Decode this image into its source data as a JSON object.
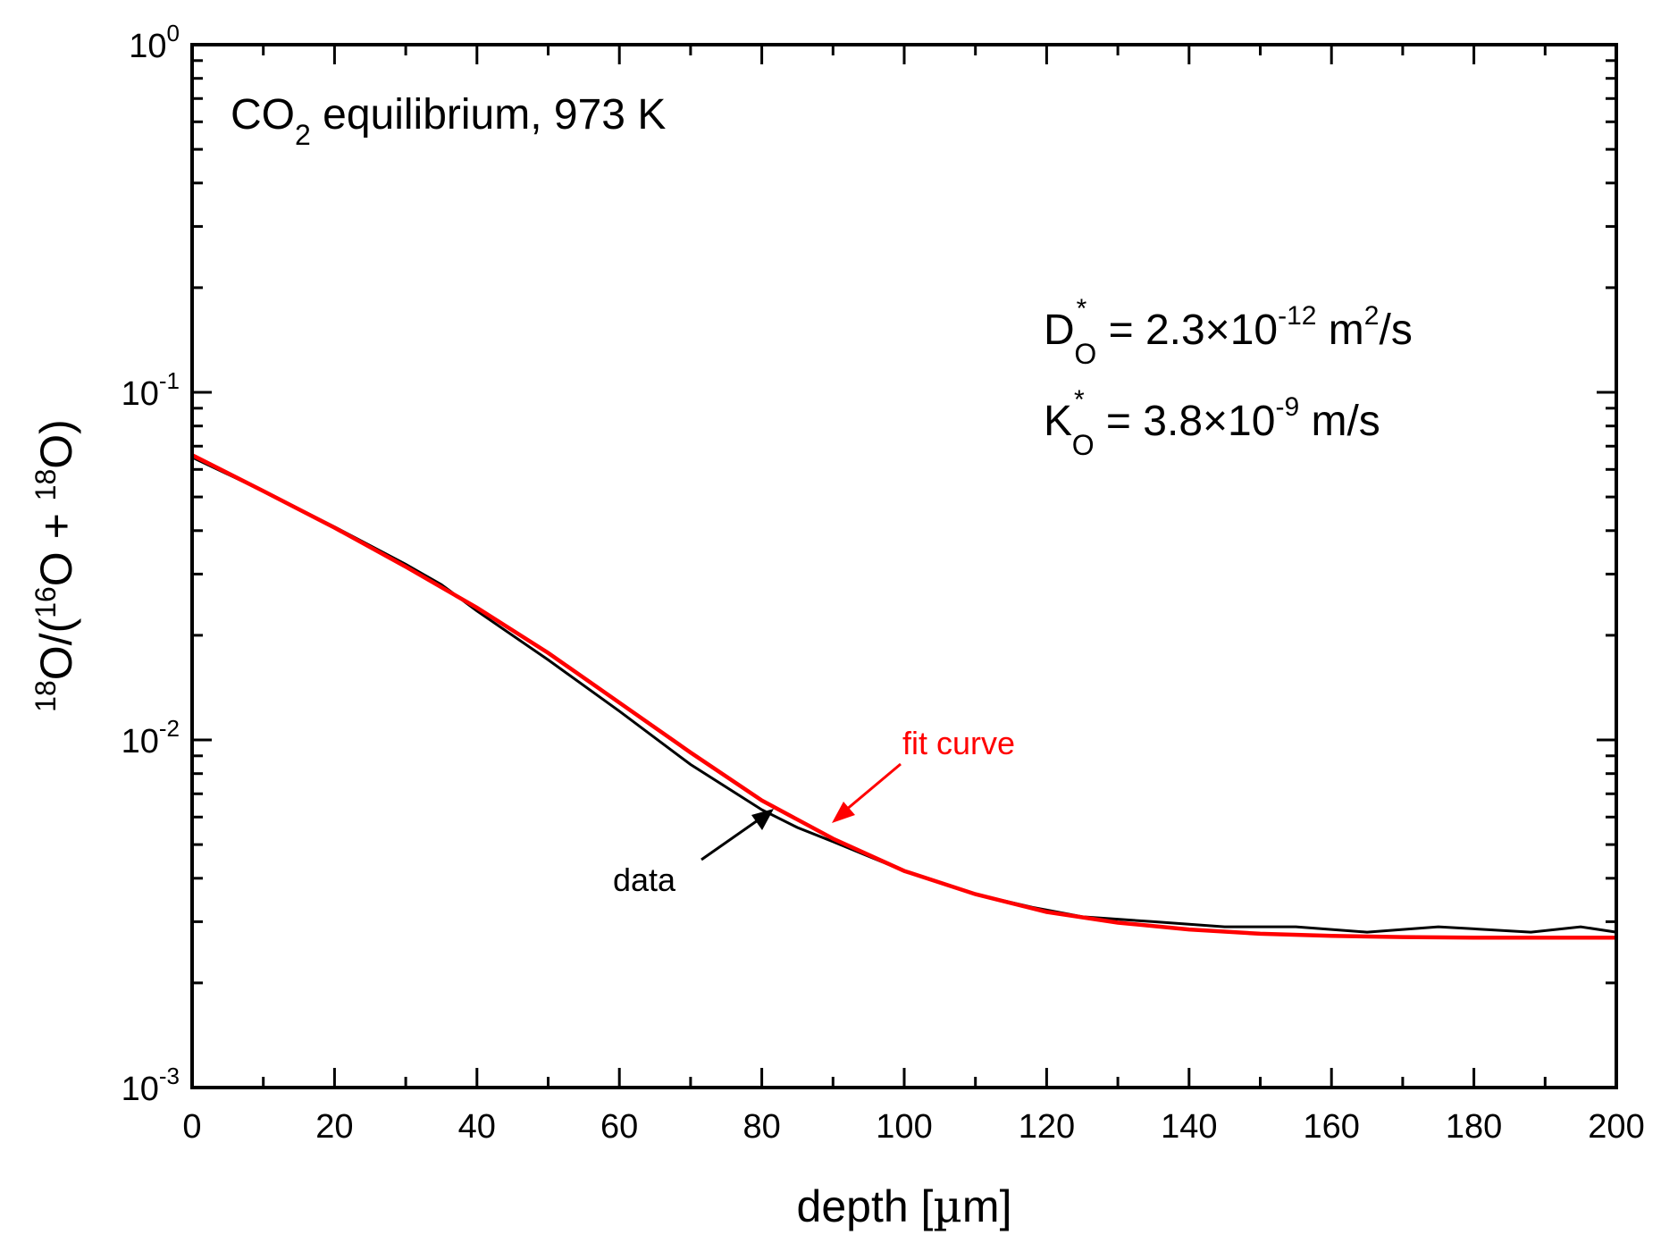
{
  "chart_data": {
    "type": "line",
    "title": "",
    "xlabel": "depth [µm]",
    "ylabel": "18O/(16O + 18O)",
    "xscale": "linear",
    "yscale": "log",
    "xlim": [
      0,
      200
    ],
    "ylim": [
      0.001,
      1
    ],
    "xticks": [
      0,
      20,
      40,
      60,
      80,
      100,
      120,
      140,
      160,
      180,
      200
    ],
    "yticks": [
      {
        "base": "10",
        "exp": "-3",
        "value": 0.001
      },
      {
        "base": "10",
        "exp": "-2",
        "value": 0.01
      },
      {
        "base": "10",
        "exp": "-1",
        "value": 0.1
      },
      {
        "base": "10",
        "exp": "0",
        "value": 1
      }
    ],
    "grid": false,
    "series": [
      {
        "name": "data",
        "color": "#000000",
        "x": [
          0,
          10,
          20,
          30,
          35,
          40,
          50,
          60,
          70,
          80,
          85,
          90,
          100,
          110,
          118,
          125,
          135,
          145,
          155,
          165,
          175,
          188,
          195,
          200
        ],
        "y": [
          0.065,
          0.052,
          0.041,
          0.032,
          0.028,
          0.0235,
          0.017,
          0.0121,
          0.0085,
          0.0063,
          0.0056,
          0.0051,
          0.0042,
          0.0036,
          0.0033,
          0.0031,
          0.003,
          0.0029,
          0.0029,
          0.0028,
          0.0029,
          0.0028,
          0.0029,
          0.0028
        ]
      },
      {
        "name": "fit curve",
        "color": "#ff0000",
        "x": [
          0,
          10,
          20,
          30,
          40,
          50,
          60,
          70,
          80,
          90,
          100,
          110,
          120,
          130,
          140,
          150,
          160,
          170,
          180,
          190,
          200
        ],
        "y": [
          0.066,
          0.052,
          0.0408,
          0.0315,
          0.024,
          0.0178,
          0.0128,
          0.0092,
          0.0067,
          0.0052,
          0.0042,
          0.0036,
          0.0032,
          0.00298,
          0.00285,
          0.00277,
          0.00273,
          0.00271,
          0.0027,
          0.0027,
          0.0027
        ]
      }
    ],
    "annotations": {
      "condition": {
        "main": "CO",
        "sub": "2",
        "rest": " equilibrium, 973 K"
      },
      "diffusion": {
        "symbol": "D",
        "sup": "*",
        "sub": "O",
        "eq": " = 2.3×10",
        "exp": "-12",
        "unit_a": " m",
        "unit_sup": "2",
        "unit_b": "/s"
      },
      "exchange": {
        "symbol": "K",
        "sup": "*",
        "sub": "O",
        "eq": " = 3.8×10",
        "exp": "-9",
        "unit": " m/s"
      },
      "fit_label": "fit curve",
      "data_label": "data"
    },
    "ylabel_parts": {
      "sup1": "18",
      "t1": "O/(",
      "sup2": "16",
      "t2": "O + ",
      "sup3": "18",
      "t3": "O)"
    },
    "xlabel_parts": {
      "t1": "depth [",
      "mu": "µ",
      "t2": "m]"
    }
  }
}
